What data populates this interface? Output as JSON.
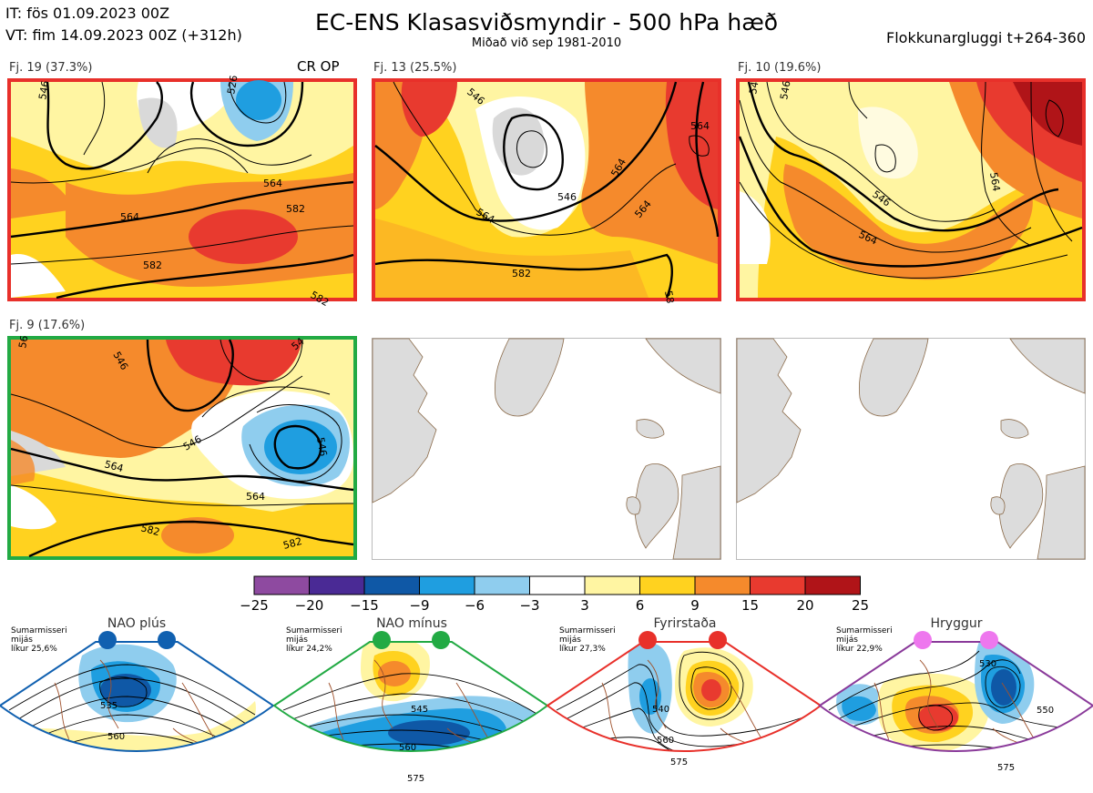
{
  "header": {
    "it_line": "IT: fös 01.09.2023 00Z",
    "vt_line": "VT: fim 14.09.2023 00Z  (+312h)",
    "title": "EC-ENS Klasasviðsmyndir - 500 hPa hæð",
    "subtitle": "Miðað við sep 1981-2010",
    "window": "Flokkunargluggi t+264-360"
  },
  "panels": [
    {
      "label": "Fj. 19 (37.3%)",
      "tag": "CR OP",
      "border": "#e8302a",
      "contours": [
        "546",
        "526",
        "564",
        "564",
        "582",
        "582",
        "582"
      ]
    },
    {
      "label": "Fj. 13 (25.5%)",
      "border": "#e8302a",
      "contours": [
        "546",
        "564",
        "564",
        "546",
        "564",
        "564",
        "582",
        "58"
      ]
    },
    {
      "label": "Fj. 10 (19.6%)",
      "border": "#e8302a",
      "contours": [
        "54",
        "546",
        "564",
        "546",
        "564"
      ]
    },
    {
      "label": "Fj. 9 (17.6%)",
      "border": "#22aa44",
      "contours": [
        "56",
        "546",
        "54",
        "546",
        "564",
        "546",
        "564",
        "582",
        "582"
      ]
    }
  ],
  "colorbar": {
    "ticks": [
      "−25",
      "−20",
      "−15",
      "−9",
      "−6",
      "−3",
      "3",
      "6",
      "9",
      "15",
      "20",
      "25"
    ],
    "colors": [
      "#8e4aa0",
      "#4a2a95",
      "#0f58a6",
      "#1f9ee0",
      "#8fcdee",
      "#ffffff",
      "#fff5a2",
      "#ffd21f",
      "#f58a2c",
      "#e83a2f",
      "#b01418"
    ]
  },
  "regimes": [
    {
      "name": "NAO plús",
      "season": "Sumarmisseri",
      "mode": "mijás",
      "prob": "líkur 25,6%",
      "dot_color": "#1060b0",
      "border": "#1060b0",
      "contours": [
        "535",
        "560"
      ]
    },
    {
      "name": "NAO mínus",
      "season": "Sumarmisseri",
      "mode": "mijás",
      "prob": "líkur 24,2%",
      "dot_color": "#22aa44",
      "border": "#22aa44",
      "contours": [
        "545",
        "560",
        "575"
      ]
    },
    {
      "name": "Fyrirstaða",
      "season": "Sumarmisseri",
      "mode": "mijás",
      "prob": "líkur 27,3%",
      "dot_color": "#e8302a",
      "border": "#e8302a",
      "contours": [
        "540",
        "560",
        "575"
      ]
    },
    {
      "name": "Hryggur",
      "season": "Sumarmisseri",
      "mode": "mijás",
      "prob": "líkur 22,9%",
      "dot_color": "#ee77ee",
      "border": "#8a3a9a",
      "contours": [
        "530",
        "550",
        "575"
      ]
    }
  ]
}
